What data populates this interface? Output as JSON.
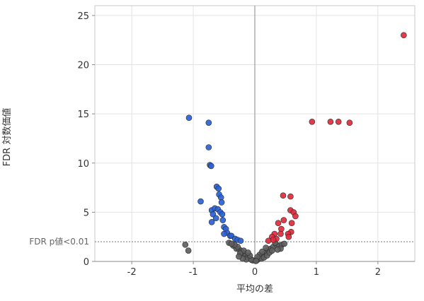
{
  "chart_data": {
    "type": "scatter",
    "xlabel": "平均の差",
    "ylabel": "FDR 対数価値",
    "xlim": [
      -2.6,
      2.6
    ],
    "ylim": [
      0,
      26
    ],
    "xticks": [
      -2,
      -1,
      0,
      1,
      2
    ],
    "yticks": [
      0,
      5,
      10,
      15,
      20,
      25
    ],
    "grid": true,
    "threshold": {
      "y": 2.0,
      "label": "FDR p値<0.01"
    },
    "colors": {
      "down": "#2a62d8",
      "up": "#e02a3c",
      "ns": "#606060"
    },
    "series": [
      {
        "key": "down",
        "points": [
          [
            -1.07,
            14.6
          ],
          [
            -0.75,
            14.1
          ],
          [
            -0.75,
            11.6
          ],
          [
            -0.73,
            9.8
          ],
          [
            -0.71,
            9.7
          ],
          [
            -0.62,
            7.6
          ],
          [
            -0.59,
            7.4
          ],
          [
            -0.58,
            6.8
          ],
          [
            -0.55,
            6.5
          ],
          [
            -0.54,
            6.0
          ],
          [
            -0.88,
            6.1
          ],
          [
            -0.7,
            5.2
          ],
          [
            -0.65,
            5.4
          ],
          [
            -0.6,
            5.3
          ],
          [
            -0.56,
            5.0
          ],
          [
            -0.53,
            4.8
          ],
          [
            -0.68,
            4.8
          ],
          [
            -0.63,
            4.4
          ],
          [
            -0.7,
            4.0
          ],
          [
            -0.52,
            4.2
          ],
          [
            -0.5,
            3.5
          ],
          [
            -0.47,
            3.3
          ],
          [
            -0.45,
            2.9
          ],
          [
            -0.4,
            2.6
          ],
          [
            -0.38,
            2.6
          ],
          [
            -0.5,
            2.8
          ],
          [
            -0.32,
            2.3
          ],
          [
            -0.28,
            2.2
          ],
          [
            -0.23,
            2.1
          ]
        ]
      },
      {
        "key": "up",
        "points": [
          [
            2.42,
            23.0
          ],
          [
            0.93,
            14.2
          ],
          [
            1.23,
            14.2
          ],
          [
            1.36,
            14.2
          ],
          [
            1.54,
            14.1
          ],
          [
            0.46,
            6.7
          ],
          [
            0.58,
            6.6
          ],
          [
            0.58,
            5.2
          ],
          [
            0.63,
            5.0
          ],
          [
            0.66,
            4.6
          ],
          [
            0.47,
            4.2
          ],
          [
            0.6,
            3.9
          ],
          [
            0.38,
            3.9
          ],
          [
            0.43,
            3.3
          ],
          [
            0.59,
            3.0
          ],
          [
            0.32,
            2.8
          ],
          [
            0.42,
            2.8
          ],
          [
            0.54,
            2.8
          ],
          [
            0.28,
            2.5
          ],
          [
            0.35,
            2.3
          ],
          [
            0.3,
            2.2
          ],
          [
            0.22,
            2.1
          ],
          [
            0.55,
            2.5
          ]
        ]
      },
      {
        "key": "ns",
        "points": [
          [
            -1.13,
            1.7
          ],
          [
            -1.08,
            1.1
          ],
          [
            -0.42,
            1.9
          ],
          [
            -0.35,
            1.6
          ],
          [
            -0.3,
            1.3
          ],
          [
            -0.25,
            1.2
          ],
          [
            -0.2,
            0.9
          ],
          [
            -0.17,
            0.7
          ],
          [
            -0.13,
            0.5
          ],
          [
            -0.1,
            0.35
          ],
          [
            -0.07,
            0.25
          ],
          [
            -0.05,
            0.15
          ],
          [
            -0.03,
            0.1
          ],
          [
            -0.28,
            1.5
          ],
          [
            -0.22,
            1.0
          ],
          [
            -0.15,
            0.6
          ],
          [
            -0.12,
            0.4
          ],
          [
            -0.09,
            0.3
          ],
          [
            -0.06,
            0.2
          ],
          [
            -0.33,
            1.7
          ],
          [
            -0.38,
            1.8
          ],
          [
            -0.18,
            1.1
          ],
          [
            -0.24,
            0.8
          ],
          [
            -0.14,
            0.2
          ],
          [
            -0.08,
            0.6
          ],
          [
            -0.2,
            0.3
          ],
          [
            -0.26,
            0.5
          ],
          [
            -0.11,
            0.9
          ],
          [
            0.03,
            0.1
          ],
          [
            0.05,
            0.2
          ],
          [
            0.07,
            0.3
          ],
          [
            0.1,
            0.5
          ],
          [
            0.13,
            0.6
          ],
          [
            0.16,
            0.8
          ],
          [
            0.19,
            1.0
          ],
          [
            0.22,
            1.2
          ],
          [
            0.26,
            1.3
          ],
          [
            0.3,
            1.5
          ],
          [
            0.35,
            1.7
          ],
          [
            0.4,
            1.6
          ],
          [
            0.44,
            1.7
          ],
          [
            0.48,
            1.8
          ],
          [
            0.08,
            0.7
          ],
          [
            0.11,
            0.3
          ],
          [
            0.15,
            0.4
          ],
          [
            0.2,
            0.6
          ],
          [
            0.24,
            0.9
          ],
          [
            0.28,
            1.1
          ],
          [
            0.33,
            1.9
          ],
          [
            0.18,
            1.4
          ],
          [
            0.12,
            1.0
          ],
          [
            0.04,
            0.45
          ],
          [
            0.42,
            1.3
          ],
          [
            0.37,
            1.2
          ],
          [
            0.02,
            0.05
          ]
        ]
      }
    ]
  }
}
